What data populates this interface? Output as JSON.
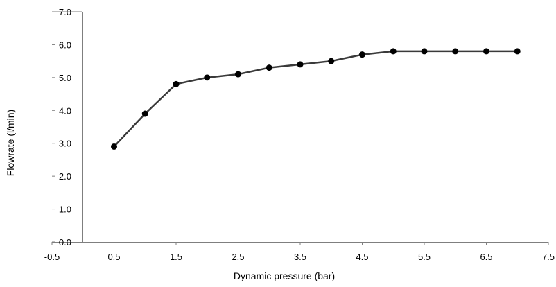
{
  "chart_data": {
    "type": "line",
    "title": "",
    "xlabel": "Dynamic pressure (bar)",
    "ylabel": "Flowrate (l/min)",
    "xlim": [
      -0.5,
      7.5
    ],
    "ylim": [
      0.0,
      7.0
    ],
    "x_ticks": [
      -0.5,
      0.5,
      1.5,
      2.5,
      3.5,
      4.5,
      5.5,
      6.5,
      7.5
    ],
    "x_tick_labels": [
      "-0.5",
      "0.5",
      "1.5",
      "2.5",
      "3.5",
      "4.5",
      "5.5",
      "6.5",
      "7.5"
    ],
    "y_ticks": [
      0.0,
      1.0,
      2.0,
      3.0,
      4.0,
      5.0,
      6.0,
      7.0
    ],
    "y_tick_labels": [
      "0.0",
      "1.0",
      "2.0",
      "3.0",
      "4.0",
      "5.0",
      "6.0",
      "7.0"
    ],
    "grid": false,
    "legend": "none",
    "series": [
      {
        "x": [
          0.5,
          1.0,
          1.5,
          2.0,
          2.5,
          3.0,
          3.5,
          4.0,
          4.5,
          5.0,
          5.5,
          6.0,
          6.5,
          7.0
        ],
        "y": [
          2.9,
          3.9,
          4.8,
          5.0,
          5.1,
          5.3,
          5.4,
          5.5,
          5.7,
          5.8,
          5.8,
          5.8,
          5.8,
          5.8
        ],
        "color": "#3a3a3a",
        "marker": "circle",
        "marker_color": "#000000"
      }
    ],
    "colors": {
      "axis": "#7f7f7f",
      "line": "#3a3a3a",
      "marker": "#000000"
    }
  }
}
